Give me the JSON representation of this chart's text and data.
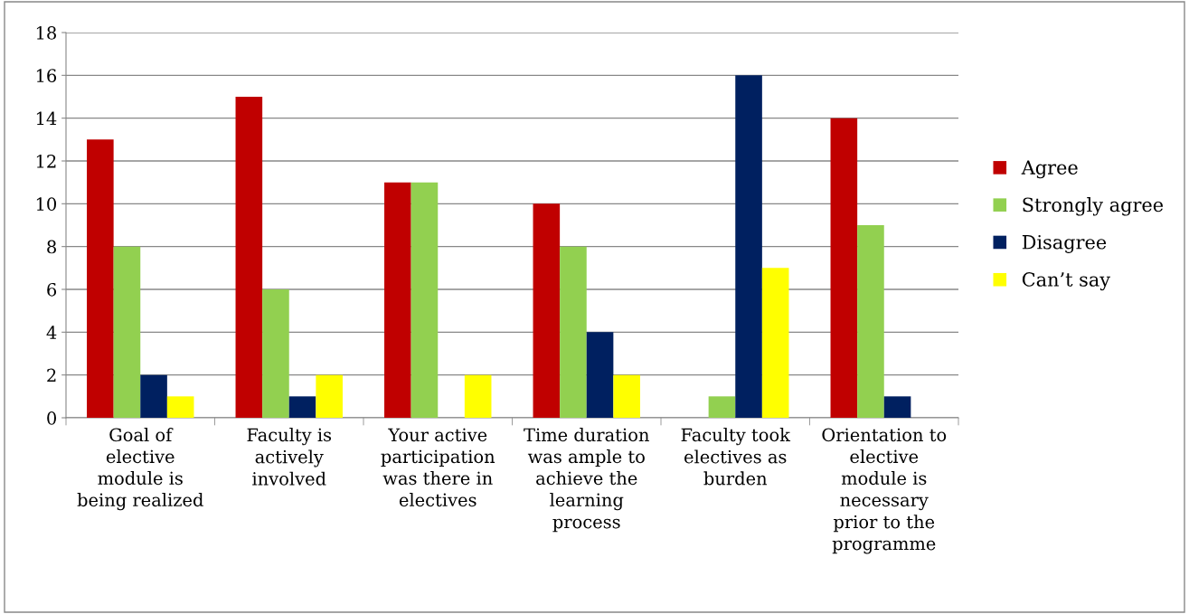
{
  "chart_data": {
    "type": "bar",
    "categories": [
      "Goal of\nelective\nmodule is\nbeing realized",
      "Faculty is\nactively\ninvolved",
      "Your active\nparticipation\nwas there in\nelectives",
      "Time duration\nwas ample to\nachieve the\nlearning\nprocess",
      "Faculty took\nelectives as\nburden",
      "Orientation to\nelective\nmodule is\nnecessary\nprior to the\nprogramme"
    ],
    "series": [
      {
        "name": "Agree",
        "color": "#c00000",
        "values": [
          13,
          15,
          11,
          10,
          0,
          14
        ]
      },
      {
        "name": "Strongly agree",
        "color": "#92d050",
        "values": [
          8,
          6,
          11,
          8,
          1,
          9
        ]
      },
      {
        "name": "Disagree",
        "color": "#002060",
        "values": [
          2,
          1,
          0,
          4,
          16,
          1
        ]
      },
      {
        "name": "Can’t say",
        "color": "#ffff00",
        "values": [
          1,
          2,
          2,
          2,
          7,
          0
        ]
      }
    ],
    "ylim": [
      0,
      18
    ],
    "yticks": [
      0,
      2,
      4,
      6,
      8,
      10,
      12,
      14,
      16,
      18
    ],
    "grid": "y",
    "legend": "right"
  }
}
